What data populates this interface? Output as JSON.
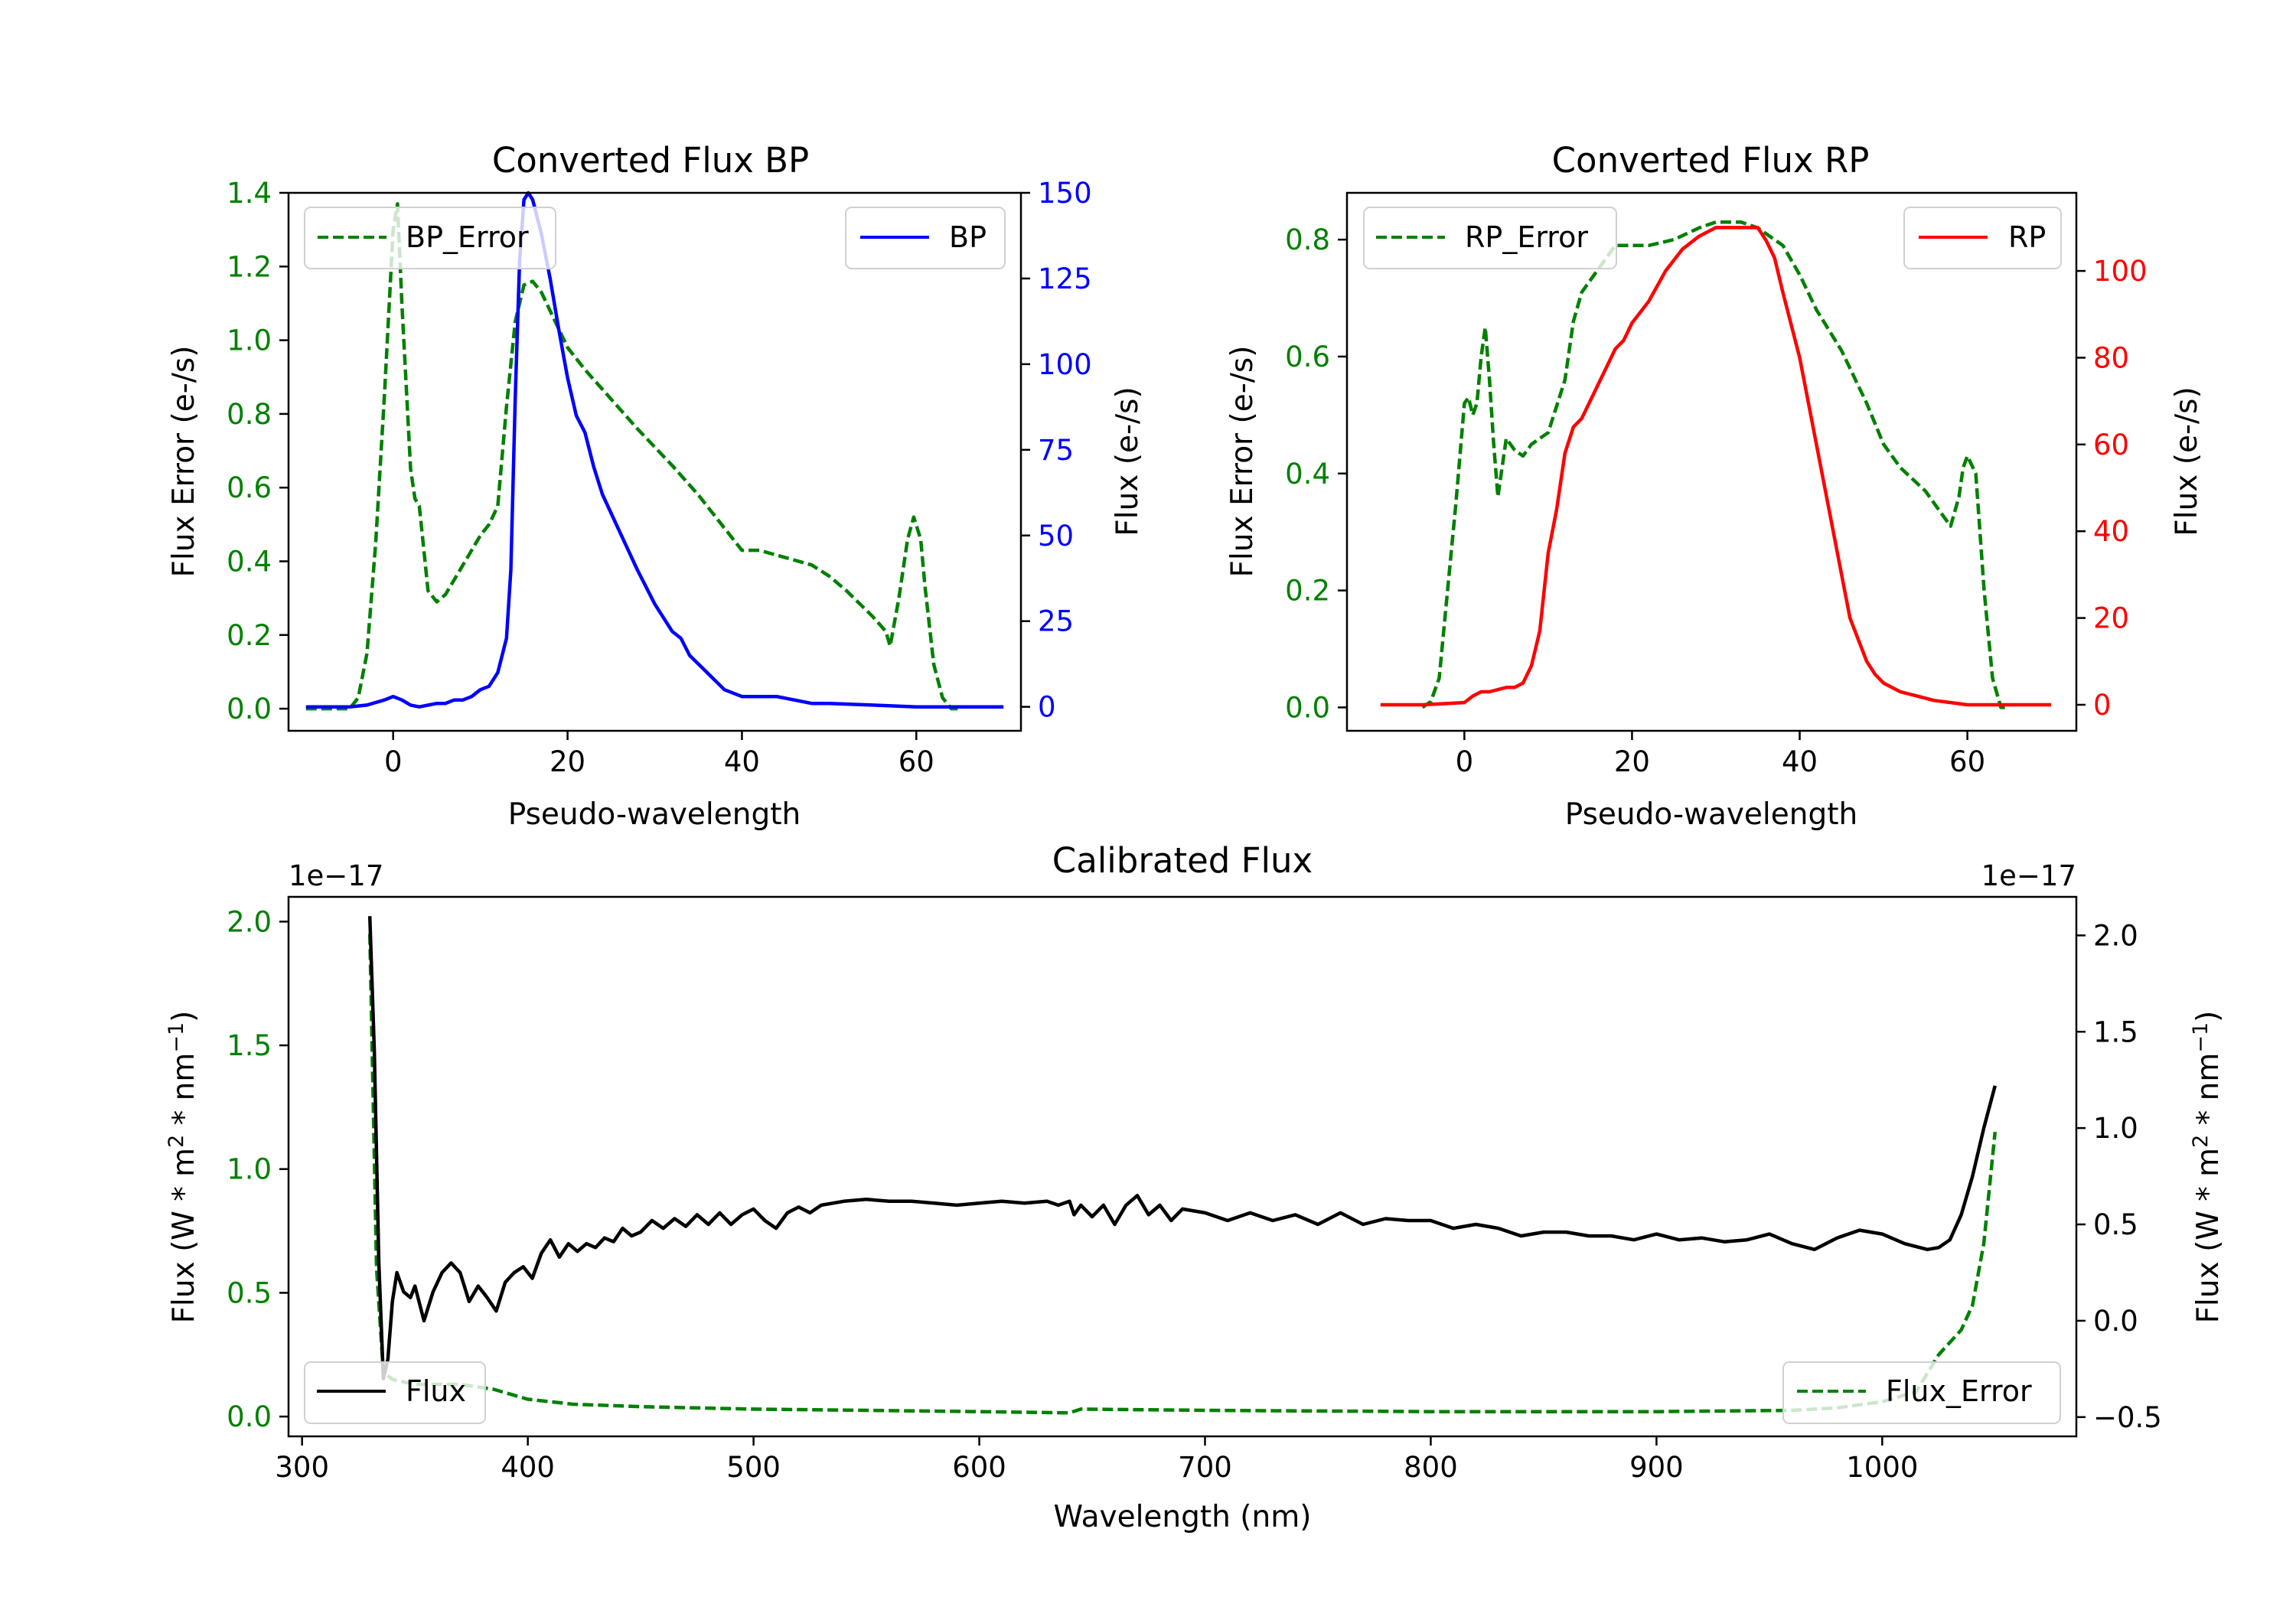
{
  "figure": {
    "colors": {
      "bp": "#0000ff",
      "rp": "#ff0000",
      "error": "#008000",
      "flux": "#000000",
      "axis": "#000000"
    }
  },
  "chart_data": [
    {
      "id": "bp",
      "type": "line",
      "title": "Converted Flux BP",
      "xlabel": "Pseudo-wavelength",
      "ylabel_left": "Flux Error (e-/s)",
      "ylabel_right": "Flux (e-/s)",
      "xlim": [
        -12,
        72
      ],
      "ylim_left": [
        -0.06,
        1.4
      ],
      "ylim_right": [
        -7,
        150
      ],
      "xticks": [
        0,
        20,
        40,
        60
      ],
      "yticks_left": [
        0.0,
        0.2,
        0.4,
        0.6,
        0.8,
        1.0,
        1.2,
        1.4
      ],
      "yticks_left_labels": [
        "0.0",
        "0.2",
        "0.4",
        "0.6",
        "0.8",
        "1.0",
        "1.2",
        "1.4"
      ],
      "yticks_right": [
        0,
        25,
        50,
        75,
        100,
        125,
        150
      ],
      "legend_left": "upper left",
      "legend_right": "upper right",
      "series": [
        {
          "name": "BP_Error",
          "axis": "left",
          "style": "dashed",
          "color": "#008000",
          "x": [
            -10,
            -5,
            -4,
            -3,
            -2,
            -1,
            0,
            0.5,
            1,
            2,
            2.5,
            3,
            4,
            5,
            6,
            7,
            8,
            9,
            10,
            11,
            12,
            13,
            14,
            15,
            16,
            17,
            18,
            19,
            20,
            22,
            25,
            28,
            30,
            32,
            35,
            38,
            40,
            42,
            45,
            48,
            50,
            52,
            55,
            56.5,
            57,
            58,
            59,
            59.7,
            60.5,
            61,
            62,
            63,
            64,
            65
          ],
          "values": [
            0,
            0,
            0.03,
            0.15,
            0.45,
            0.85,
            1.3,
            1.37,
            1.1,
            0.65,
            0.57,
            0.55,
            0.32,
            0.29,
            0.31,
            0.35,
            0.39,
            0.43,
            0.47,
            0.5,
            0.55,
            0.82,
            1.05,
            1.15,
            1.16,
            1.13,
            1.08,
            1.03,
            0.98,
            0.92,
            0.84,
            0.76,
            0.71,
            0.66,
            0.58,
            0.49,
            0.43,
            0.43,
            0.41,
            0.39,
            0.36,
            0.32,
            0.25,
            0.21,
            0.17,
            0.3,
            0.46,
            0.52,
            0.46,
            0.33,
            0.12,
            0.03,
            0,
            0
          ]
        },
        {
          "name": "BP",
          "axis": "right",
          "style": "solid",
          "color": "#0000ff",
          "x": [
            -10,
            -5,
            -3,
            -1,
            0,
            1,
            2,
            3,
            4,
            5,
            6,
            7,
            8,
            9,
            10,
            11,
            12,
            13,
            13.5,
            14,
            14.5,
            15,
            15.5,
            16,
            16.5,
            17,
            18,
            19,
            20,
            21,
            22,
            23,
            24,
            26,
            28,
            30,
            32,
            33,
            34,
            36,
            38,
            40,
            42,
            44,
            46,
            48,
            50,
            55,
            60,
            65,
            70
          ],
          "values": [
            0,
            0,
            0.5,
            2,
            3,
            2,
            0.5,
            0,
            0.5,
            1,
            1,
            2,
            2,
            3,
            5,
            6,
            10,
            20,
            40,
            90,
            130,
            148,
            150,
            148,
            143,
            138,
            125,
            110,
            96,
            85,
            80,
            70,
            62,
            51,
            40,
            30,
            22,
            20,
            15,
            10,
            5,
            3,
            3,
            3,
            2,
            1,
            1,
            0.5,
            0,
            0,
            0
          ]
        }
      ],
      "legend": [
        "BP_Error",
        "BP"
      ]
    },
    {
      "id": "rp",
      "type": "line",
      "title": "Converted Flux RP",
      "xlabel": "Pseudo-wavelength",
      "ylabel_left": "Flux Error (e-/s)",
      "ylabel_right": "Flux (e-/s)",
      "xlim": [
        -14,
        73
      ],
      "ylim_left": [
        -0.04,
        0.88
      ],
      "ylim_right": [
        -6,
        118
      ],
      "xticks": [
        0,
        20,
        40,
        60
      ],
      "yticks_left": [
        0.0,
        0.2,
        0.4,
        0.6,
        0.8
      ],
      "yticks_left_labels": [
        "0.0",
        "0.2",
        "0.4",
        "0.6",
        "0.8"
      ],
      "yticks_right": [
        0,
        20,
        40,
        60,
        80,
        100
      ],
      "legend_left": "upper left",
      "legend_right": "upper right",
      "series": [
        {
          "name": "RP_Error",
          "axis": "left",
          "style": "dashed",
          "color": "#008000",
          "x": [
            -5,
            -4,
            -3,
            -2,
            -1,
            0,
            0.5,
            1,
            1.5,
            2,
            2.5,
            3,
            3.5,
            4,
            5,
            6,
            7,
            8,
            10,
            12,
            13,
            14,
            15,
            16,
            17,
            18,
            20,
            22,
            25,
            28,
            30,
            33,
            35,
            38,
            40,
            42,
            45,
            48,
            50,
            52,
            55,
            57,
            58,
            59,
            59.5,
            60,
            61,
            62,
            63,
            64,
            65
          ],
          "values": [
            0,
            0.01,
            0.05,
            0.2,
            0.35,
            0.52,
            0.53,
            0.5,
            0.52,
            0.6,
            0.65,
            0.56,
            0.45,
            0.36,
            0.46,
            0.44,
            0.43,
            0.45,
            0.47,
            0.56,
            0.66,
            0.71,
            0.73,
            0.75,
            0.77,
            0.79,
            0.79,
            0.79,
            0.8,
            0.82,
            0.83,
            0.83,
            0.82,
            0.79,
            0.74,
            0.68,
            0.61,
            0.52,
            0.45,
            0.41,
            0.37,
            0.33,
            0.31,
            0.36,
            0.41,
            0.43,
            0.4,
            0.2,
            0.05,
            0,
            0
          ]
        },
        {
          "name": "RP",
          "axis": "right",
          "style": "solid",
          "color": "#ff0000",
          "x": [
            -10,
            -5,
            0,
            1,
            2,
            3,
            5,
            6,
            7,
            8,
            9,
            10,
            11,
            12,
            13,
            14,
            15,
            16,
            17,
            18,
            19,
            20,
            22,
            24,
            26,
            28,
            30,
            32,
            33,
            34,
            35,
            36,
            37,
            38,
            40,
            42,
            44,
            46,
            48,
            49,
            50,
            52,
            54,
            56,
            58,
            60,
            62,
            65,
            70
          ],
          "values": [
            0,
            0,
            0.5,
            2,
            3,
            3,
            4,
            4,
            5,
            9,
            17,
            35,
            45,
            58,
            64,
            66,
            70,
            74,
            78,
            82,
            84,
            88,
            93,
            100,
            105,
            108,
            110,
            110,
            110,
            110,
            110,
            107,
            103,
            95,
            80,
            60,
            40,
            20,
            10,
            7,
            5,
            3,
            2,
            1,
            0.5,
            0,
            0,
            0,
            0
          ]
        }
      ],
      "legend": [
        "RP_Error",
        "RP"
      ]
    },
    {
      "id": "cal",
      "type": "line",
      "title": "Calibrated Flux",
      "xlabel": "Wavelength (nm)",
      "ylabel_left": "Flux (W * m",
      "ylabel_right": "Flux (W * m",
      "ylabel_parts": {
        "exp1": "2",
        "mid": " * nm",
        "exp2": "−1",
        "end": ")"
      },
      "offset_left": "1e−17",
      "offset_right": "1e−17",
      "xlim": [
        294,
        1086
      ],
      "ylim_left": [
        -0.08,
        2.1
      ],
      "ylim_right": [
        -0.6,
        2.2
      ],
      "xticks": [
        300,
        400,
        500,
        600,
        700,
        800,
        900,
        1000
      ],
      "yticks_left": [
        0.0,
        0.5,
        1.0,
        1.5,
        2.0
      ],
      "yticks_left_labels": [
        "0.0",
        "0.5",
        "1.0",
        "1.5",
        "2.0"
      ],
      "yticks_right": [
        -0.5,
        0.0,
        0.5,
        1.0,
        1.5,
        2.0
      ],
      "yticks_right_labels": [
        "−0.5",
        "0.0",
        "0.5",
        "1.0",
        "1.5",
        "2.0"
      ],
      "legend_left": "lower left",
      "legend_right": "lower right",
      "series": [
        {
          "name": "Flux_Error",
          "axis": "left",
          "style": "dashed",
          "color": "#008000",
          "x": [
            330,
            333,
            336,
            340,
            350,
            370,
            385,
            400,
            420,
            450,
            500,
            550,
            600,
            640,
            645,
            700,
            800,
            900,
            960,
            980,
            1000,
            1015,
            1025,
            1035,
            1040,
            1045,
            1050
          ],
          "values": [
            1.95,
            0.6,
            0.18,
            0.15,
            0.13,
            0.13,
            0.11,
            0.07,
            0.05,
            0.04,
            0.03,
            0.025,
            0.02,
            0.015,
            0.03,
            0.025,
            0.02,
            0.02,
            0.025,
            0.035,
            0.06,
            0.1,
            0.25,
            0.35,
            0.45,
            0.7,
            1.15
          ]
        },
        {
          "name": "Flux",
          "axis": "right",
          "style": "solid",
          "color": "#000000",
          "x": [
            330,
            332,
            334,
            336,
            338,
            340,
            342,
            345,
            348,
            350,
            354,
            358,
            362,
            366,
            370,
            374,
            378,
            382,
            386,
            390,
            394,
            398,
            402,
            406,
            410,
            414,
            418,
            422,
            426,
            430,
            434,
            438,
            442,
            446,
            450,
            455,
            460,
            465,
            470,
            475,
            480,
            485,
            490,
            495,
            500,
            505,
            510,
            515,
            520,
            525,
            530,
            540,
            550,
            560,
            570,
            580,
            590,
            600,
            610,
            620,
            630,
            635,
            640,
            642,
            645,
            650,
            655,
            660,
            665,
            670,
            675,
            680,
            685,
            690,
            700,
            710,
            720,
            730,
            740,
            750,
            760,
            770,
            780,
            790,
            800,
            810,
            820,
            830,
            840,
            850,
            860,
            870,
            880,
            890,
            900,
            910,
            920,
            930,
            940,
            950,
            960,
            970,
            980,
            990,
            1000,
            1010,
            1020,
            1025,
            1030,
            1035,
            1040,
            1045,
            1050
          ],
          "values": [
            2.1,
            1.4,
            0.3,
            -0.3,
            -0.2,
            0.1,
            0.25,
            0.15,
            0.12,
            0.18,
            0.0,
            0.15,
            0.25,
            0.3,
            0.25,
            0.1,
            0.18,
            0.12,
            0.05,
            0.2,
            0.25,
            0.28,
            0.22,
            0.35,
            0.42,
            0.33,
            0.4,
            0.36,
            0.4,
            0.38,
            0.43,
            0.41,
            0.48,
            0.44,
            0.46,
            0.52,
            0.48,
            0.53,
            0.49,
            0.55,
            0.5,
            0.56,
            0.5,
            0.55,
            0.58,
            0.52,
            0.48,
            0.56,
            0.59,
            0.56,
            0.6,
            0.62,
            0.63,
            0.62,
            0.62,
            0.61,
            0.6,
            0.61,
            0.62,
            0.61,
            0.62,
            0.6,
            0.62,
            0.55,
            0.6,
            0.54,
            0.6,
            0.5,
            0.6,
            0.65,
            0.55,
            0.6,
            0.52,
            0.58,
            0.56,
            0.52,
            0.56,
            0.52,
            0.55,
            0.5,
            0.56,
            0.5,
            0.53,
            0.52,
            0.52,
            0.48,
            0.5,
            0.48,
            0.44,
            0.46,
            0.46,
            0.44,
            0.44,
            0.42,
            0.45,
            0.42,
            0.43,
            0.41,
            0.42,
            0.45,
            0.4,
            0.37,
            0.43,
            0.47,
            0.45,
            0.4,
            0.37,
            0.38,
            0.42,
            0.55,
            0.75,
            1.0,
            1.22
          ]
        }
      ],
      "legend": [
        "Flux",
        "Flux_Error"
      ]
    }
  ]
}
